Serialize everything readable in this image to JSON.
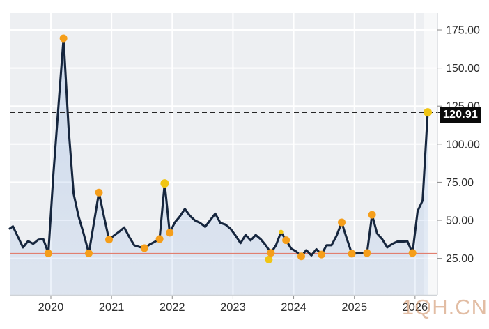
{
  "watermark": "1QH.CN",
  "last_price_label": "120.91",
  "colors": {
    "plot_bg": "#edeff2",
    "grid": "#ffffff",
    "line": "#16263e",
    "area_top": "rgba(140,175,225,0.32)",
    "area_bottom": "rgba(140,175,225,0.16)",
    "marker_orange": "#f59e1a",
    "marker_yellow": "#f0c514",
    "support_line": "#e17f70",
    "dashed_line": "#262626",
    "axis_text": "#2e2e2e",
    "tick": "#8a8a8a",
    "axis_border": "#cfd3d7",
    "highlight_band": "rgba(255,255,255,0.55)",
    "label_bg": "#0b0b0b",
    "label_text": "#ffffff",
    "watermark_color": "#cf9268"
  },
  "chart_data": {
    "type": "area",
    "title": "",
    "xlabel": "",
    "ylabel": "",
    "legend": "none",
    "grid": true,
    "ylim": [
      1,
      186
    ],
    "y_ticks": [
      "175.00",
      "150.00",
      "125.00",
      "100.00",
      "75.00",
      "50.00",
      "25.00"
    ],
    "y_tick_values": [
      175,
      150,
      125,
      100,
      75,
      50,
      25
    ],
    "x_ticks": [
      "2020",
      "2021",
      "2022",
      "2023",
      "2024",
      "2025",
      "2026"
    ],
    "x_tick_years": [
      2020,
      2021,
      2022,
      2023,
      2024,
      2025,
      2026
    ],
    "last_price": 120.91,
    "support_level": 28.2,
    "months": [
      "2019-05",
      "2019-06",
      "2019-07",
      "2019-08",
      "2019-09",
      "2019-10",
      "2019-11",
      "2019-12",
      "2020-01",
      "2020-02",
      "2020-03",
      "2020-04",
      "2020-05",
      "2020-06",
      "2020-07",
      "2020-08",
      "2020-09",
      "2020-10",
      "2020-11",
      "2020-12",
      "2021-01",
      "2021-02",
      "2021-03",
      "2021-04",
      "2021-05",
      "2021-06",
      "2021-07",
      "2021-08",
      "2021-09",
      "2021-10",
      "2021-11",
      "2021-12",
      "2022-01",
      "2022-02",
      "2022-03",
      "2022-04",
      "2022-05",
      "2022-06",
      "2022-07",
      "2022-08",
      "2022-09",
      "2022-10",
      "2022-11",
      "2022-12",
      "2023-01",
      "2023-02",
      "2023-03",
      "2023-04",
      "2023-05",
      "2023-06",
      "2023-07",
      "2023-08",
      "2023-09",
      "2023-10",
      "2023-11",
      "2023-12",
      "2024-01",
      "2024-02",
      "2024-03",
      "2024-04",
      "2024-05",
      "2024-06",
      "2024-07",
      "2024-08",
      "2024-09",
      "2024-10",
      "2024-11",
      "2024-12",
      "2025-01",
      "2025-02",
      "2025-03",
      "2025-04",
      "2025-05",
      "2025-06",
      "2025-07",
      "2025-08",
      "2025-09",
      "2025-10",
      "2025-11",
      "2025-12",
      "2026-01",
      "2026-02",
      "2026-03"
    ],
    "values": [
      46,
      39,
      32.2,
      36.3,
      34.5,
      37.2,
      37.7,
      28.3,
      80,
      125,
      169.5,
      111,
      67.3,
      52.4,
      41,
      28.3,
      48,
      68.2,
      52.5,
      37.3,
      40,
      42.5,
      45.3,
      39,
      33.5,
      32.5,
      31.7,
      34,
      35.8,
      37.7,
      74.2,
      41.8,
      48.5,
      52.5,
      57.5,
      52.9,
      49.8,
      48.3,
      45.7,
      50,
      54.4,
      48.3,
      47.2,
      44.5,
      40,
      35,
      40.4,
      36.8,
      40.4,
      37.5,
      33.5,
      28.6,
      33.5,
      42.3,
      36.9,
      31.5,
      29.5,
      26.3,
      30.4,
      26.9,
      31,
      27.5,
      33.6,
      33.6,
      40,
      48.6,
      38,
      28.1,
      28.3,
      28.4,
      28.5,
      53.6,
      41.3,
      37.7,
      32.2,
      34.5,
      36,
      36,
      36.2,
      28.5,
      56,
      63,
      120.91
    ],
    "markers": [
      {
        "m": "2019-12",
        "c": "orange"
      },
      {
        "m": "2020-03",
        "c": "orange"
      },
      {
        "m": "2020-08",
        "c": "orange"
      },
      {
        "m": "2020-10",
        "c": "orange"
      },
      {
        "m": "2020-12",
        "c": "orange"
      },
      {
        "m": "2021-07",
        "c": "orange"
      },
      {
        "m": "2021-10",
        "c": "orange"
      },
      {
        "m": "2021-11",
        "c": "yellow"
      },
      {
        "m": "2021-12",
        "c": "orange"
      },
      {
        "m": "2023-08",
        "c": "orange"
      },
      {
        "m": "2023-10",
        "c": "yellow",
        "small": true
      },
      {
        "m": "2023-11",
        "c": "orange"
      },
      {
        "m": "2024-02",
        "c": "orange"
      },
      {
        "m": "2024-06",
        "c": "orange"
      },
      {
        "m": "2024-10",
        "c": "orange"
      },
      {
        "m": "2024-12",
        "c": "orange"
      },
      {
        "m": "2025-03",
        "c": "orange"
      },
      {
        "m": "2025-04",
        "c": "orange"
      },
      {
        "m": "2025-12",
        "c": "orange"
      },
      {
        "m": "2026-03",
        "c": "yellow"
      }
    ],
    "extra_markers": [
      {
        "m": "2023-08",
        "value": 24.2,
        "c": "yellow"
      }
    ]
  }
}
